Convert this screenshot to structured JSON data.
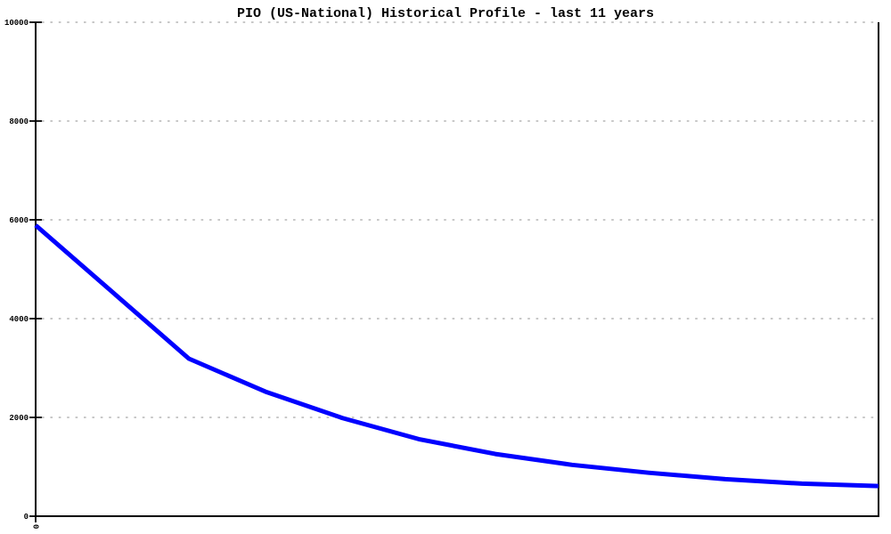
{
  "chart": {
    "title": "PIO (US-National) Historical Profile - last 11 years"
  },
  "chart_data": {
    "type": "line",
    "title": "PIO (US-National) Historical Profile - last 11 years",
    "x": [
      0,
      1,
      2,
      3,
      4,
      5,
      6,
      7,
      8,
      9,
      10,
      11
    ],
    "series": [
      {
        "name": "PIO (US-National)",
        "color": "#0000ff",
        "values": [
          5890,
          4540,
          3190,
          2520,
          1990,
          1560,
          1260,
          1040,
          880,
          750,
          660,
          610
        ]
      }
    ],
    "xlabel": "",
    "ylabel": "",
    "xlim": [
      0,
      11
    ],
    "ylim": [
      0,
      10000
    ],
    "yticks": [
      0,
      2000,
      4000,
      6000,
      8000,
      10000
    ],
    "ytick_labels": [
      "0",
      "2000",
      "4000",
      "6000",
      "8000",
      "10000"
    ],
    "xticks": [
      0
    ],
    "xtick_labels": [
      "0"
    ],
    "xtick_rotation": 90,
    "grid": "horizontal-dotted",
    "grid_color": "#b5b5b5",
    "axis_color": "#000000",
    "background": "#ffffff",
    "legend": "none",
    "line_width": 5
  }
}
